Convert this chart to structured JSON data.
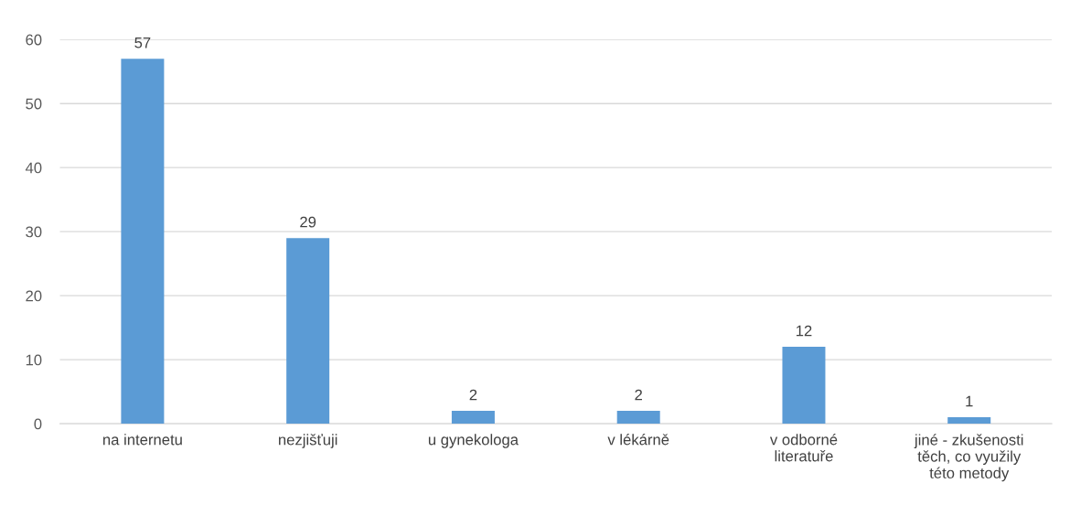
{
  "chart_data": {
    "type": "bar",
    "categories": [
      "na internetu",
      "nezjišťuji",
      "u gynekologa",
      "v lékárně",
      "v odborné literatuře",
      "jiné - zkušenosti těch, co využily této metody"
    ],
    "values": [
      57,
      29,
      2,
      2,
      12,
      1
    ],
    "color": "#5b9bd5",
    "ylim": [
      0,
      60
    ],
    "yticks": [
      0,
      10,
      20,
      30,
      40,
      50,
      60
    ],
    "grid": "y",
    "data_labels": true
  }
}
